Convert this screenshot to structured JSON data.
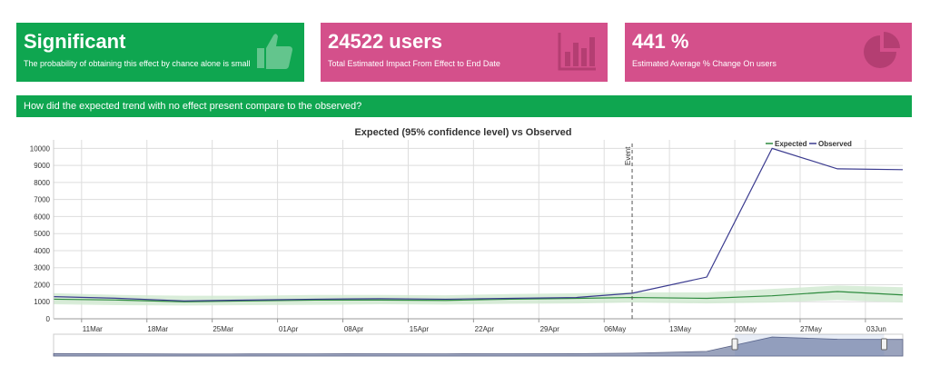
{
  "cards": [
    {
      "value": "Significant",
      "subtitle": "The probability of obtaining this effect by chance alone is small",
      "icon": "thumbs-up-icon"
    },
    {
      "value": "24522 users",
      "subtitle": "Total Estimated Impact From Effect to End Date",
      "icon": "bar-chart-icon"
    },
    {
      "value": "441 %",
      "subtitle": "Estimated Average % Change On users",
      "icon": "pie-chart-icon"
    }
  ],
  "question": "How did the expected trend with no effect present compare to the observed?",
  "colors": {
    "green": "#0fa650",
    "pink": "#d4508b",
    "expected": "#2e8b3e",
    "observed": "#3b3b8f",
    "band": "#cfe9cf"
  },
  "chart_data": {
    "type": "line",
    "title": "Expected (95% confidence level) vs Observed",
    "x_tick_labels": [
      "11Mar",
      "18Mar",
      "25Mar",
      "01Apr",
      "08Apr",
      "15Apr",
      "22Apr",
      "29Apr",
      "06May",
      "13May",
      "20May",
      "27May",
      "03Jun"
    ],
    "x_range": [
      "2020-03-08",
      "2020-06-07"
    ],
    "ylim": [
      0,
      10500
    ],
    "y_ticks": [
      0,
      1000,
      2000,
      3000,
      4000,
      5000,
      6000,
      7000,
      8000,
      9000,
      10000
    ],
    "event": {
      "date": "2020-05-09",
      "label": "Event"
    },
    "legend": {
      "position": "top-right",
      "items": [
        "Expected",
        "Observed"
      ]
    },
    "series": [
      {
        "name": "Observed",
        "x": [
          "2020-03-08",
          "2020-03-15",
          "2020-03-22",
          "2020-03-29",
          "2020-04-05",
          "2020-04-12",
          "2020-04-19",
          "2020-04-26",
          "2020-05-03",
          "2020-05-09",
          "2020-05-17",
          "2020-05-24",
          "2020-05-31",
          "2020-06-07"
        ],
        "values": [
          1300,
          1200,
          1050,
          1100,
          1150,
          1180,
          1150,
          1200,
          1250,
          1500,
          2450,
          10000,
          8800,
          8750
        ]
      },
      {
        "name": "Expected",
        "x": [
          "2020-03-08",
          "2020-03-15",
          "2020-03-22",
          "2020-03-29",
          "2020-04-05",
          "2020-04-12",
          "2020-04-19",
          "2020-04-26",
          "2020-05-03",
          "2020-05-09",
          "2020-05-17",
          "2020-05-24",
          "2020-05-31",
          "2020-06-07"
        ],
        "values": [
          1150,
          1100,
          1000,
          1050,
          1100,
          1100,
          1080,
          1150,
          1200,
          1250,
          1200,
          1350,
          1600,
          1400
        ],
        "lower": [
          850,
          800,
          780,
          800,
          820,
          850,
          830,
          880,
          900,
          950,
          900,
          950,
          1100,
          950
        ],
        "upper": [
          1500,
          1400,
          1350,
          1350,
          1400,
          1400,
          1380,
          1450,
          1500,
          1550,
          1550,
          1750,
          1950,
          1850
        ]
      }
    ]
  }
}
